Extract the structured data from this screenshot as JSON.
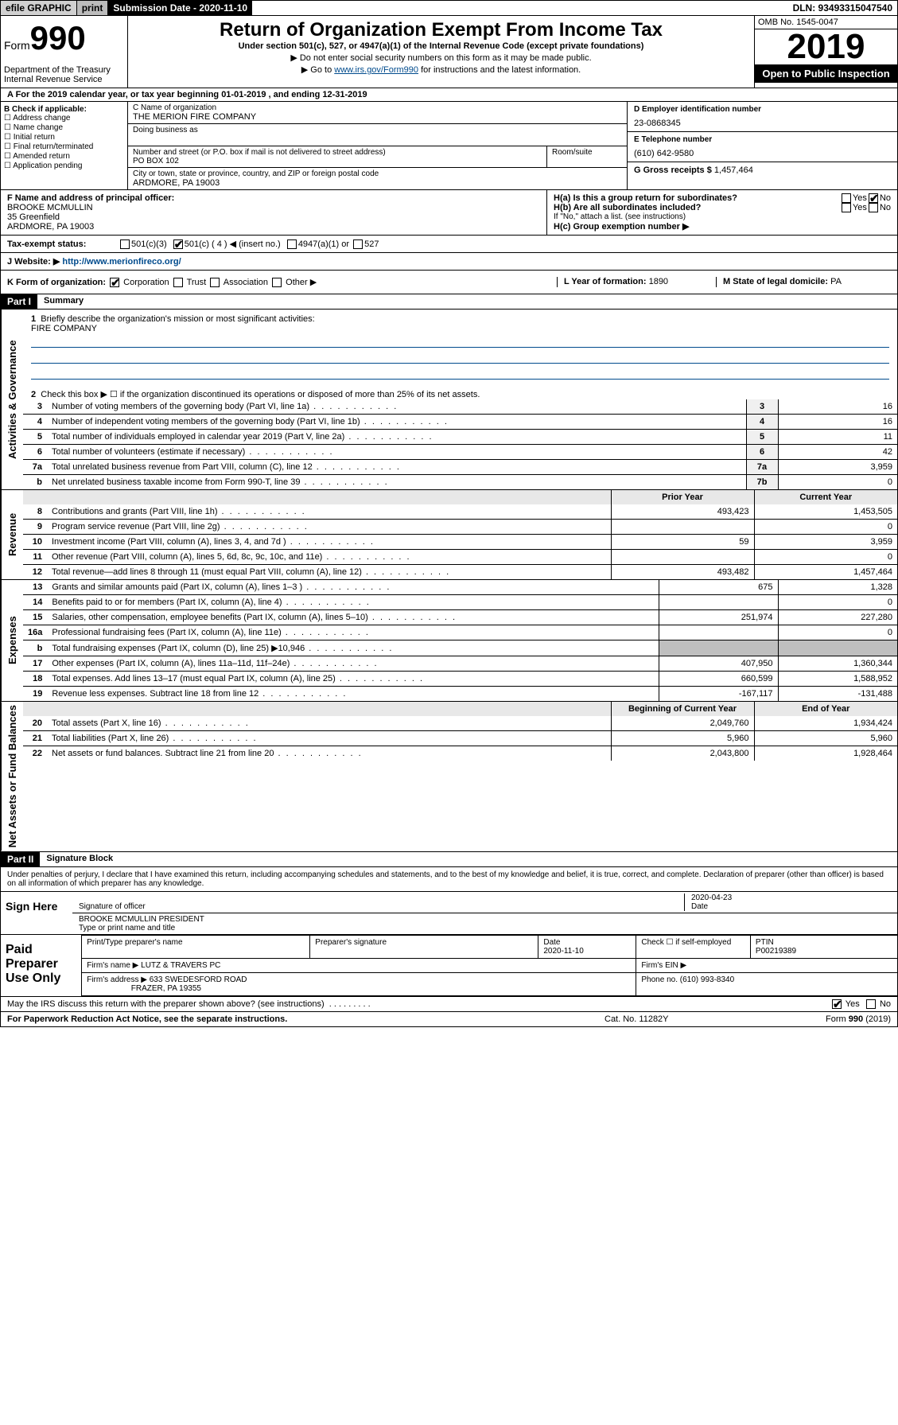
{
  "topbar": {
    "efile": "efile GRAPHIC",
    "print": "print",
    "subdate_lbl": "Submission Date - 2020-11-10",
    "dln": "DLN: 93493315047540"
  },
  "header": {
    "form_prefix": "Form",
    "form_num": "990",
    "dept": "Department of the Treasury",
    "irs": "Internal Revenue Service",
    "title": "Return of Organization Exempt From Income Tax",
    "sub": "Under section 501(c), 527, or 4947(a)(1) of the Internal Revenue Code (except private foundations)",
    "note1": "Do not enter social security numbers on this form as it may be made public.",
    "note2_pre": "Go to ",
    "note2_link": "www.irs.gov/Form990",
    "note2_post": " for instructions and the latest information.",
    "omb": "OMB No. 1545-0047",
    "year": "2019",
    "open": "Open to Public Inspection"
  },
  "row_a": "A For the 2019 calendar year, or tax year beginning 01-01-2019   , and ending 12-31-2019",
  "entity": {
    "b_label": "B Check if applicable:",
    "b_opts": [
      "Address change",
      "Name change",
      "Initial return",
      "Final return/terminated",
      "Amended return",
      "Application pending"
    ],
    "c_label": "C Name of organization",
    "c_name": "THE MERION FIRE COMPANY",
    "dba_label": "Doing business as",
    "addr_label": "Number and street (or P.O. box if mail is not delivered to street address)",
    "room_label": "Room/suite",
    "addr": "PO BOX 102",
    "city_label": "City or town, state or province, country, and ZIP or foreign postal code",
    "city": "ARDMORE, PA  19003",
    "d_label": "D Employer identification number",
    "d_val": "23-0868345",
    "e_label": "E Telephone number",
    "e_val": "(610) 642-9580",
    "g_label": "G Gross receipts $",
    "g_val": "1,457,464"
  },
  "fg": {
    "f_label": "F Name and address of principal officer:",
    "f_name": "BROOKE MCMULLIN",
    "f_addr1": "35 Greenfield",
    "f_addr2": "ARDMORE, PA  19003",
    "ha": "H(a) Is this a group return for subordinates?",
    "hb": "H(b) Are all subordinates included?",
    "hb_note": "If \"No,\" attach a list. (see instructions)",
    "hc": "H(c) Group exemption number ▶",
    "yes": "Yes",
    "no": "No"
  },
  "row_i": {
    "label": "Tax-exempt status:",
    "opt1": "501(c)(3)",
    "opt2": "501(c) ( 4 ) ◀ (insert no.)",
    "opt3": "4947(a)(1) or",
    "opt4": "527"
  },
  "row_j": {
    "label": "J Website: ▶",
    "url": "http://www.merionfireco.org/"
  },
  "row_k": {
    "label": "K Form of organization:",
    "opts": [
      "Corporation",
      "Trust",
      "Association",
      "Other ▶"
    ],
    "l_label": "L Year of formation:",
    "l_val": "1890",
    "m_label": "M State of legal domicile:",
    "m_val": "PA"
  },
  "part1": {
    "hdr": "Part I",
    "title": "Summary",
    "q1": "Briefly describe the organization's mission or most significant activities:",
    "q1_val": "FIRE COMPANY",
    "q2": "Check this box ▶ ☐ if the organization discontinued its operations or disposed of more than 25% of its net assets.",
    "sections": {
      "gov": "Activities & Governance",
      "rev": "Revenue",
      "exp": "Expenses",
      "net": "Net Assets or Fund Balances"
    },
    "col_prior": "Prior Year",
    "col_curr": "Current Year",
    "col_beg": "Beginning of Current Year",
    "col_end": "End of Year",
    "lines_gov": [
      {
        "n": "3",
        "d": "Number of voting members of the governing body (Part VI, line 1a)",
        "box": "3",
        "v": "16"
      },
      {
        "n": "4",
        "d": "Number of independent voting members of the governing body (Part VI, line 1b)",
        "box": "4",
        "v": "16"
      },
      {
        "n": "5",
        "d": "Total number of individuals employed in calendar year 2019 (Part V, line 2a)",
        "box": "5",
        "v": "11"
      },
      {
        "n": "6",
        "d": "Total number of volunteers (estimate if necessary)",
        "box": "6",
        "v": "42"
      },
      {
        "n": "7a",
        "d": "Total unrelated business revenue from Part VIII, column (C), line 12",
        "box": "7a",
        "v": "3,959"
      },
      {
        "n": "b",
        "d": "Net unrelated business taxable income from Form 990-T, line 39",
        "box": "7b",
        "v": "0"
      }
    ],
    "lines_rev": [
      {
        "n": "8",
        "d": "Contributions and grants (Part VIII, line 1h)",
        "p": "493,423",
        "c": "1,453,505"
      },
      {
        "n": "9",
        "d": "Program service revenue (Part VIII, line 2g)",
        "p": "",
        "c": "0"
      },
      {
        "n": "10",
        "d": "Investment income (Part VIII, column (A), lines 3, 4, and 7d )",
        "p": "59",
        "c": "3,959"
      },
      {
        "n": "11",
        "d": "Other revenue (Part VIII, column (A), lines 5, 6d, 8c, 9c, 10c, and 11e)",
        "p": "",
        "c": "0"
      },
      {
        "n": "12",
        "d": "Total revenue—add lines 8 through 11 (must equal Part VIII, column (A), line 12)",
        "p": "493,482",
        "c": "1,457,464"
      }
    ],
    "lines_exp": [
      {
        "n": "13",
        "d": "Grants and similar amounts paid (Part IX, column (A), lines 1–3 )",
        "p": "675",
        "c": "1,328"
      },
      {
        "n": "14",
        "d": "Benefits paid to or for members (Part IX, column (A), line 4)",
        "p": "",
        "c": "0"
      },
      {
        "n": "15",
        "d": "Salaries, other compensation, employee benefits (Part IX, column (A), lines 5–10)",
        "p": "251,974",
        "c": "227,280"
      },
      {
        "n": "16a",
        "d": "Professional fundraising fees (Part IX, column (A), line 11e)",
        "p": "",
        "c": "0"
      },
      {
        "n": "b",
        "d": "Total fundraising expenses (Part IX, column (D), line 25) ▶10,946",
        "p": "_SHADE_",
        "c": "_SHADE_"
      },
      {
        "n": "17",
        "d": "Other expenses (Part IX, column (A), lines 11a–11d, 11f–24e)",
        "p": "407,950",
        "c": "1,360,344"
      },
      {
        "n": "18",
        "d": "Total expenses. Add lines 13–17 (must equal Part IX, column (A), line 25)",
        "p": "660,599",
        "c": "1,588,952"
      },
      {
        "n": "19",
        "d": "Revenue less expenses. Subtract line 18 from line 12",
        "p": "-167,117",
        "c": "-131,488"
      }
    ],
    "lines_net": [
      {
        "n": "20",
        "d": "Total assets (Part X, line 16)",
        "p": "2,049,760",
        "c": "1,934,424"
      },
      {
        "n": "21",
        "d": "Total liabilities (Part X, line 26)",
        "p": "5,960",
        "c": "5,960"
      },
      {
        "n": "22",
        "d": "Net assets or fund balances. Subtract line 21 from line 20",
        "p": "2,043,800",
        "c": "1,928,464"
      }
    ]
  },
  "part2": {
    "hdr": "Part II",
    "title": "Signature Block",
    "perjury": "Under penalties of perjury, I declare that I have examined this return, including accompanying schedules and statements, and to the best of my knowledge and belief, it is true, correct, and complete. Declaration of preparer (other than officer) is based on all information of which preparer has any knowledge.",
    "sign_here": "Sign Here",
    "sig_officer": "Signature of officer",
    "sig_date": "2020-04-23",
    "date_lbl": "Date",
    "typed_name": "BROOKE MCMULLIN  PRESIDENT",
    "typed_lbl": "Type or print name and title",
    "paid_label": "Paid Preparer Use Only",
    "prep_name_lbl": "Print/Type preparer's name",
    "prep_sig_lbl": "Preparer's signature",
    "prep_date_lbl": "Date",
    "prep_date": "2020-11-10",
    "self_emp": "Check ☐ if self-employed",
    "ptin_lbl": "PTIN",
    "ptin": "P00219389",
    "firm_name_lbl": "Firm's name   ▶",
    "firm_name": "LUTZ & TRAVERS PC",
    "firm_ein_lbl": "Firm's EIN ▶",
    "firm_addr_lbl": "Firm's address ▶",
    "firm_addr1": "633 SWEDESFORD ROAD",
    "firm_addr2": "FRAZER, PA  19355",
    "phone_lbl": "Phone no.",
    "phone": "(610) 993-8340",
    "discuss": "May the IRS discuss this return with the preparer shown above? (see instructions)",
    "paperwork": "For Paperwork Reduction Act Notice, see the separate instructions.",
    "catno": "Cat. No. 11282Y",
    "formref": "Form 990 (2019)"
  }
}
